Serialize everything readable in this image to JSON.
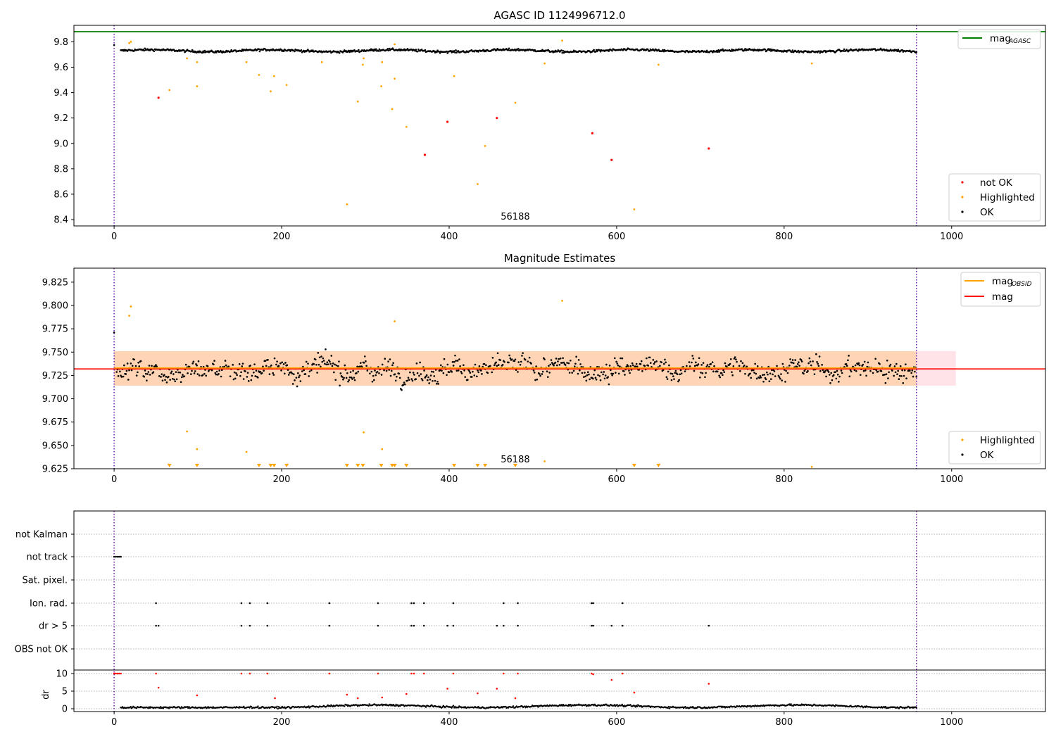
{
  "chart_data": [
    {
      "type": "scatter",
      "title": "AGASC ID 1124996712.0",
      "xlim": [
        -48,
        1112
      ],
      "ylim": [
        8.35,
        9.93
      ],
      "xticks": [
        0,
        200,
        400,
        600,
        800,
        1000
      ],
      "yticks": [
        8.4,
        8.6,
        8.8,
        9.0,
        9.2,
        9.4,
        9.6,
        9.8
      ],
      "ytick_labels": [
        "8.4",
        "8.6",
        "8.8",
        "9.0",
        "9.2",
        "9.4",
        "9.6",
        "9.8"
      ],
      "obsid_label": {
        "text": "56188",
        "x": 479
      },
      "obsid_bounds": [
        0,
        958
      ],
      "mag_agasc": 9.88,
      "mag_agasc_color": "#008000",
      "ok_series": {
        "name": "OK",
        "color": "#000000",
        "n": 958,
        "x_start": 8,
        "x_end": 958,
        "center": 9.73,
        "spread": 0.015
      },
      "highlighted": {
        "name": "Highlighted",
        "color": "#ffa500",
        "x": [
          18,
          20,
          66,
          87,
          99,
          99,
          158,
          173,
          187,
          191,
          206,
          248,
          278,
          291,
          297,
          298,
          319,
          320,
          332,
          335,
          335,
          349,
          406,
          434,
          443,
          479,
          514,
          535,
          621,
          650,
          833
        ],
        "y": [
          9.79,
          9.8,
          9.42,
          9.67,
          9.45,
          9.64,
          9.64,
          9.54,
          9.41,
          9.53,
          9.46,
          9.64,
          8.52,
          9.33,
          9.62,
          9.67,
          9.45,
          9.64,
          9.27,
          9.78,
          9.51,
          9.13,
          9.53,
          8.68,
          8.98,
          9.32,
          9.63,
          9.81,
          8.48,
          9.62,
          9.63
        ]
      },
      "not_ok": {
        "name": "not OK",
        "color": "#ff0000",
        "x": [
          53,
          371,
          398,
          457,
          571,
          594,
          710
        ],
        "y": [
          9.36,
          8.91,
          9.17,
          9.2,
          9.08,
          8.87,
          8.96
        ]
      },
      "legend_top": [
        {
          "label": "mag",
          "sub": "AGASC",
          "color": "#008000"
        }
      ],
      "legend_bottom": [
        {
          "label": "not OK",
          "color": "#ff0000"
        },
        {
          "label": "Highlighted",
          "color": "#ffa500"
        },
        {
          "label": "OK",
          "color": "#000000"
        }
      ]
    },
    {
      "type": "scatter",
      "title": "Magnitude Estimates",
      "xlim": [
        -48,
        1112
      ],
      "ylim": [
        9.625,
        9.84
      ],
      "xticks": [
        0,
        200,
        400,
        600,
        800,
        1000
      ],
      "yticks": [
        9.625,
        9.65,
        9.675,
        9.7,
        9.725,
        9.75,
        9.775,
        9.8,
        9.825
      ],
      "ytick_labels": [
        "9.625",
        "9.650",
        "9.675",
        "9.700",
        "9.725",
        "9.750",
        "9.775",
        "9.800",
        "9.825"
      ],
      "obsid_label": {
        "text": "56188",
        "x": 479
      },
      "obsid_bounds": [
        0,
        958
      ],
      "mag": 9.732,
      "mag_band": [
        9.714,
        9.751
      ],
      "mag_obsid": 9.733,
      "obsid_band": [
        9.714,
        9.751
      ],
      "band_x": [
        0,
        1005
      ],
      "ok_series": {
        "name": "OK",
        "color": "#000000",
        "n": 958,
        "x_start": 3,
        "x_end": 958,
        "center": 9.732,
        "spread": 0.017
      },
      "highlighted": {
        "name": "Highlighted",
        "color": "#ffa500",
        "x": [
          18,
          20,
          87,
          99,
          158,
          298,
          320,
          335,
          514,
          535,
          833
        ],
        "y": [
          9.789,
          9.799,
          9.665,
          9.646,
          9.643,
          9.664,
          9.646,
          9.783,
          9.633,
          9.805,
          9.627
        ]
      },
      "clipped_x": [
        66,
        99,
        173,
        187,
        191,
        206,
        278,
        291,
        297,
        319,
        332,
        335,
        349,
        406,
        434,
        443,
        479,
        621,
        650
      ],
      "legend_top": [
        {
          "label": "mag",
          "sub": "OBSID",
          "color": "#ffa500"
        },
        {
          "label": "mag",
          "sub": "",
          "color": "#ff0000"
        }
      ],
      "legend_bottom": [
        {
          "label": "Highlighted",
          "color": "#ffa500"
        },
        {
          "label": "OK",
          "color": "#000000"
        }
      ]
    },
    {
      "type": "scatter",
      "title": "",
      "xlim": [
        -48,
        1112
      ],
      "xticks": [
        0,
        200,
        400,
        600,
        800,
        1000
      ],
      "flag_rows": [
        "not Kalman",
        "not track",
        "Sat. pixel.",
        "Ion. rad.",
        "dr > 5",
        "OBS not OK"
      ],
      "flag_points": {
        "not track": [
          0,
          2,
          4,
          6,
          8
        ],
        "Ion. rad.": [
          50,
          152,
          162,
          183,
          257,
          315,
          355,
          358,
          370,
          405,
          465,
          482,
          570,
          572,
          607
        ],
        "dr > 5": [
          50,
          53,
          152,
          162,
          183,
          257,
          315,
          355,
          358,
          370,
          398,
          405,
          457,
          465,
          482,
          570,
          572,
          594,
          607,
          710
        ]
      },
      "dr_ylabel": "dr",
      "dr_yticks": [
        0,
        5,
        10
      ],
      "dr_ylim": [
        -0.8,
        11
      ],
      "dr_ok": {
        "color": "#000000",
        "n": 958,
        "x_start": 8,
        "x_end": 958
      },
      "dr_high": {
        "color": "#ff0000",
        "x": [
          0,
          2,
          4,
          6,
          8,
          50,
          53,
          99,
          152,
          162,
          183,
          192,
          257,
          278,
          291,
          315,
          320,
          349,
          355,
          358,
          370,
          398,
          405,
          434,
          457,
          465,
          479,
          482,
          570,
          572,
          594,
          607,
          621,
          710
        ],
        "y": [
          10,
          10,
          10,
          10,
          10,
          10,
          6.0,
          3.8,
          10,
          10,
          10,
          3.0,
          10,
          4.0,
          3.0,
          10,
          3.2,
          4.2,
          10,
          10,
          10,
          5.7,
          10,
          4.4,
          5.7,
          10,
          3.0,
          10,
          10,
          9.8,
          8.2,
          10,
          4.6,
          7.1
        ]
      }
    }
  ]
}
